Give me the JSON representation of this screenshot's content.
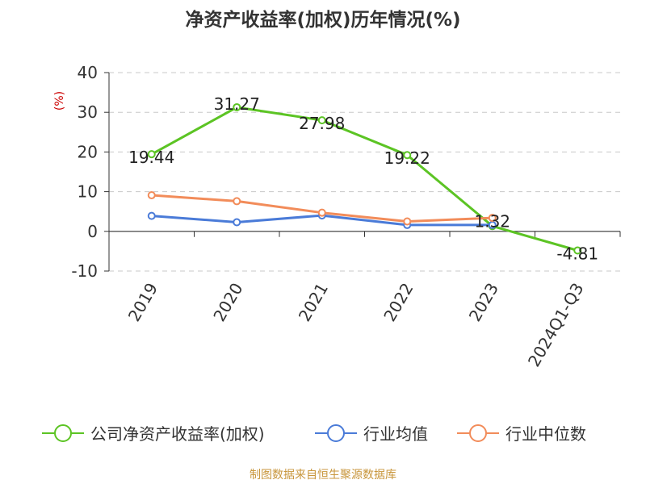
{
  "chart_data": {
    "type": "line",
    "title": "净资产收益率(加权)历年情况(%)",
    "unit_label": "(%)",
    "categories": [
      "2019",
      "2020",
      "2021",
      "2022",
      "2023",
      "2024Q1-Q3"
    ],
    "ylim": [
      -10,
      40
    ],
    "yticks": [
      -10,
      0,
      10,
      20,
      30,
      40
    ],
    "grid": true,
    "legend_position": "bottom",
    "series": [
      {
        "name": "公司净资产收益率(加权)",
        "color": "#5cc424",
        "values": [
          19.44,
          31.27,
          27.98,
          19.22,
          1.32,
          -4.81
        ],
        "data_labels": [
          "19.44",
          "31.27",
          "27.98",
          "19.22",
          "1.32",
          "-4.81"
        ]
      },
      {
        "name": "行业均值",
        "color": "#4a7bd8",
        "values": [
          3.9,
          2.3,
          4.0,
          1.6,
          1.6,
          null
        ]
      },
      {
        "name": "行业中位数",
        "color": "#f28c5a",
        "values": [
          9.1,
          7.6,
          4.7,
          2.5,
          3.4,
          null
        ]
      }
    ],
    "source": "制图数据来自恒生聚源数据库"
  }
}
